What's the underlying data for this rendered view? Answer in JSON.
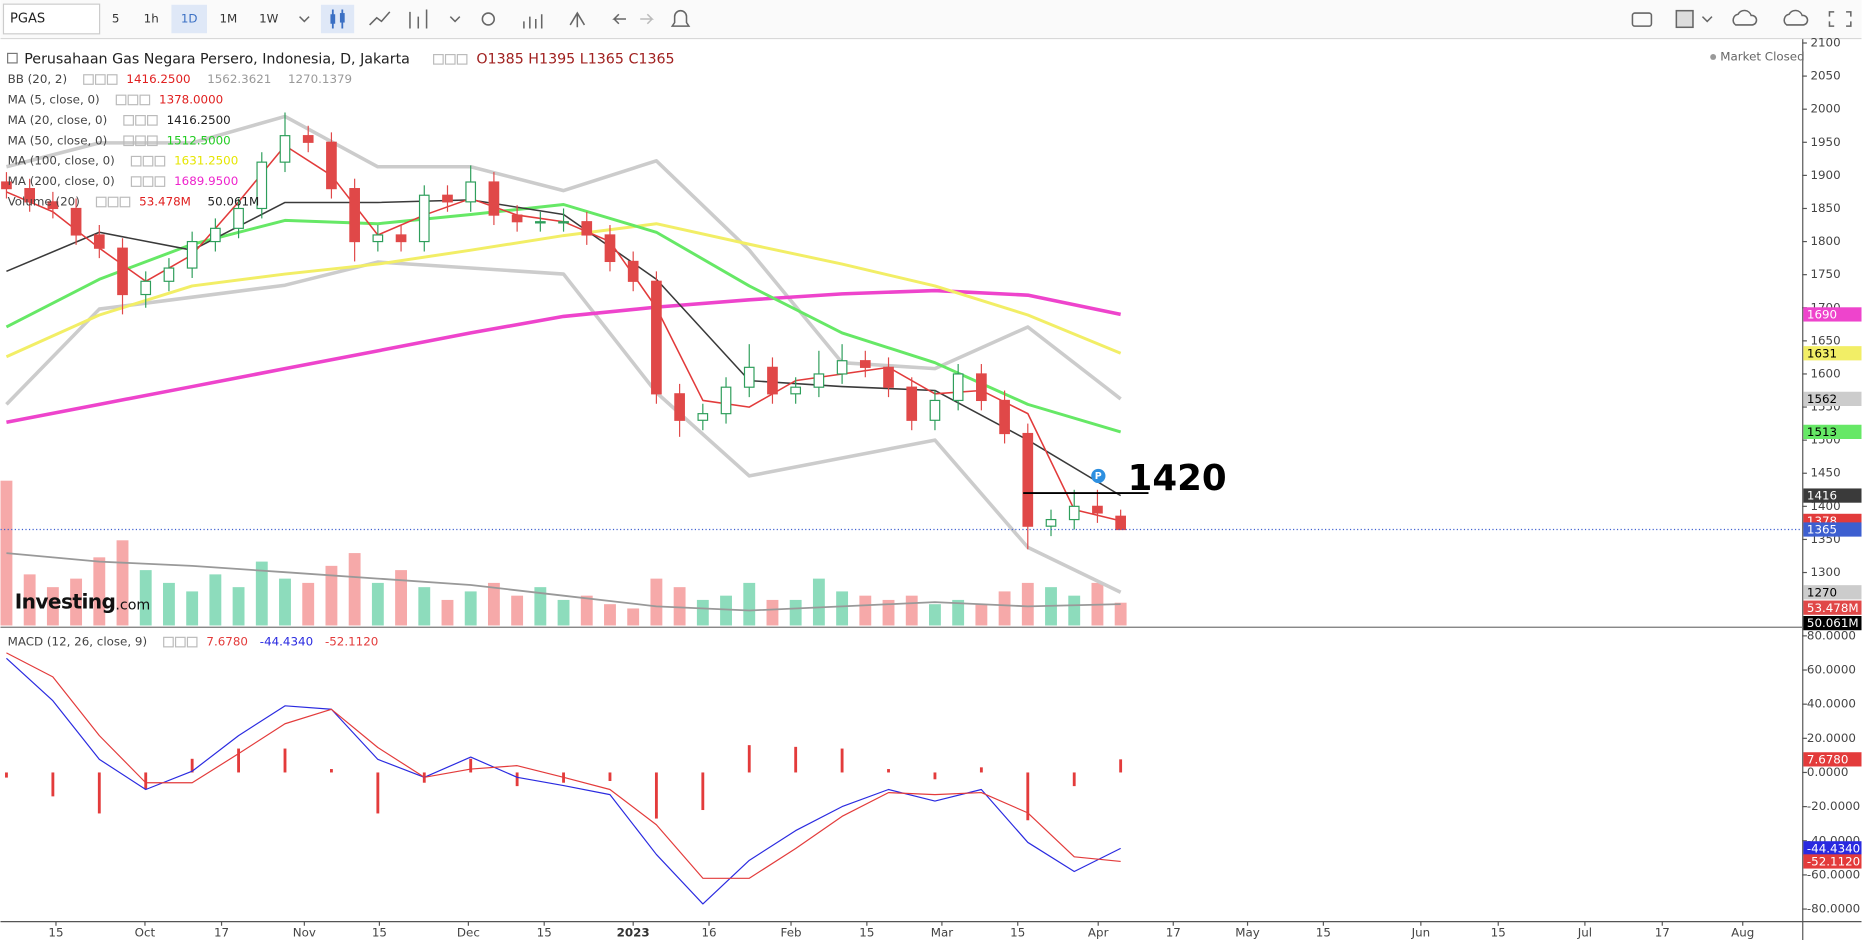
{
  "toolbar": {
    "symbol": "PGAS",
    "intervals": [
      "5",
      "1h",
      "1D",
      "1M",
      "1W"
    ],
    "active": 2
  },
  "status": "Market Closed",
  "watermark": [
    "Investing",
    ".com"
  ],
  "chart_data": [
    {
      "type": "candlestick",
      "title": "Perusahaan Gas Negara Persero, Indonesia, D, Jakarta",
      "ohlc_label": "O1385  H1395  L1365  C1365",
      "up_color": "#2e9e5b",
      "down_color": "#e04848",
      "x": [
        0,
        3,
        6,
        9,
        12,
        15,
        18,
        21,
        24,
        27,
        30,
        33,
        36,
        39,
        42,
        45,
        48,
        51,
        54,
        57,
        60,
        63,
        66,
        69,
        72,
        75,
        78,
        81,
        84,
        87,
        90,
        93,
        96,
        99,
        102,
        105,
        108,
        111,
        114,
        117,
        120,
        123,
        126,
        129,
        132,
        135,
        138,
        141,
        144
      ],
      "open": [
        1890,
        1880,
        1860,
        1850,
        1810,
        1790,
        1720,
        1740,
        1760,
        1800,
        1820,
        1850,
        1920,
        1960,
        1950,
        1880,
        1800,
        1810,
        1800,
        1870,
        1860,
        1890,
        1840,
        1830,
        1830,
        1830,
        1810,
        1770,
        1740,
        1570,
        1530,
        1540,
        1580,
        1610,
        1570,
        1580,
        1600,
        1620,
        1610,
        1580,
        1530,
        1560,
        1600,
        1560,
        1510,
        1370,
        1380,
        1400,
        1385
      ],
      "high": [
        1905,
        1895,
        1875,
        1865,
        1825,
        1805,
        1755,
        1775,
        1815,
        1835,
        1865,
        1935,
        1995,
        1975,
        1965,
        1895,
        1825,
        1825,
        1885,
        1885,
        1915,
        1905,
        1855,
        1845,
        1850,
        1845,
        1825,
        1785,
        1755,
        1585,
        1555,
        1595,
        1645,
        1625,
        1595,
        1635,
        1645,
        1635,
        1625,
        1595,
        1575,
        1615,
        1615,
        1575,
        1525,
        1395,
        1425,
        1425,
        1395
      ],
      "low": [
        1865,
        1845,
        1835,
        1795,
        1775,
        1690,
        1700,
        1725,
        1745,
        1785,
        1805,
        1835,
        1905,
        1935,
        1865,
        1770,
        1785,
        1785,
        1785,
        1845,
        1845,
        1825,
        1815,
        1815,
        1815,
        1795,
        1755,
        1725,
        1555,
        1505,
        1515,
        1525,
        1565,
        1555,
        1555,
        1565,
        1585,
        1595,
        1565,
        1515,
        1515,
        1545,
        1545,
        1495,
        1335,
        1355,
        1365,
        1375,
        1365
      ],
      "close": [
        1880,
        1860,
        1850,
        1810,
        1790,
        1720,
        1740,
        1760,
        1800,
        1820,
        1850,
        1920,
        1960,
        1950,
        1880,
        1800,
        1810,
        1800,
        1870,
        1860,
        1890,
        1840,
        1830,
        1830,
        1830,
        1810,
        1770,
        1740,
        1570,
        1530,
        1540,
        1580,
        1610,
        1570,
        1580,
        1600,
        1620,
        1610,
        1580,
        1530,
        1560,
        1600,
        1560,
        1510,
        1370,
        1380,
        1400,
        1390,
        1365
      ],
      "xlim": [
        -1,
        233
      ],
      "xticks": [
        {
          "value": 6.4,
          "label": "15"
        },
        {
          "value": 17.9,
          "label": "Oct"
        },
        {
          "value": 27.8,
          "label": "17"
        },
        {
          "value": 38.5,
          "label": "Nov"
        },
        {
          "value": 48.2,
          "label": "15"
        },
        {
          "value": 59.7,
          "label": "Dec"
        },
        {
          "value": 69.5,
          "label": "15"
        },
        {
          "value": 81,
          "label": "2023"
        },
        {
          "value": 90.8,
          "label": "16"
        },
        {
          "value": 101.4,
          "label": "Feb"
        },
        {
          "value": 111.2,
          "label": "15"
        },
        {
          "value": 120.9,
          "label": "Mar"
        },
        {
          "value": 130.7,
          "label": "15"
        },
        {
          "value": 141.1,
          "label": "Apr"
        },
        {
          "value": 150.8,
          "label": "17"
        },
        {
          "value": 160.4,
          "label": "May"
        },
        {
          "value": 170.2,
          "label": "15"
        },
        {
          "value": 182.8,
          "label": "Jun"
        },
        {
          "value": 192.8,
          "label": "15"
        },
        {
          "value": 204,
          "label": "Jul"
        },
        {
          "value": 214,
          "label": "17"
        },
        {
          "value": 224.4,
          "label": "Aug"
        }
      ],
      "ylim": [
        1220,
        2104
      ],
      "yticks": [
        1300,
        1350,
        1400,
        1450,
        1500,
        1550,
        1600,
        1650,
        1700,
        1750,
        1800,
        1850,
        1900,
        1950,
        2000,
        2050,
        2100
      ],
      "overlays": [
        {
          "color": "#cccccc",
          "width": 3,
          "x": [
            0,
            12,
            24,
            36,
            48,
            60,
            72,
            84,
            96,
            108,
            120,
            132,
            144
          ],
          "values": [
            1913,
            1949,
            1949,
            1989,
            1913,
            1913,
            1877,
            1922,
            1787,
            1617,
            1608,
            1671,
            1562.3621
          ],
          "value_label": "1562"
        },
        {
          "color": "#cccccc",
          "width": 3,
          "x": [
            0,
            12,
            24,
            36,
            48,
            60,
            72,
            84,
            96,
            108,
            120,
            132,
            144
          ],
          "values": [
            1554,
            1698,
            1716,
            1734,
            1769,
            1760,
            1751,
            1572,
            1446,
            1473,
            1500,
            1338,
            1270.1379
          ],
          "value_label": "1270"
        },
        {
          "color": "#ee44cc",
          "width": 3,
          "x": [
            0,
            12,
            24,
            36,
            48,
            60,
            72,
            84,
            96,
            108,
            120,
            132,
            144
          ],
          "values": [
            1527,
            1554,
            1581,
            1608,
            1635,
            1662,
            1687,
            1701,
            1712,
            1721,
            1726,
            1719,
            1689.95
          ],
          "value_label": "1690"
        },
        {
          "color": "#f2ee66",
          "width": 2.5,
          "x": [
            0,
            12,
            24,
            36,
            48,
            60,
            72,
            84,
            96,
            108,
            120,
            132,
            144
          ],
          "values": [
            1626,
            1689,
            1733,
            1751,
            1766,
            1787,
            1809,
            1827,
            1796,
            1766,
            1733,
            1689,
            1631.25
          ],
          "value_label": "1631"
        },
        {
          "color": "#66e866",
          "width": 2.5,
          "x": [
            0,
            12,
            24,
            36,
            48,
            60,
            72,
            84,
            96,
            108,
            120,
            132,
            144
          ],
          "values": [
            1671,
            1743,
            1796,
            1832,
            1827,
            1841,
            1856,
            1814,
            1733,
            1662,
            1617,
            1554,
            1512.5
          ],
          "value_label": "1513"
        },
        {
          "color": "#3a3a3a",
          "width": 1.3,
          "x": [
            0,
            12,
            24,
            36,
            48,
            60,
            72,
            84,
            96,
            108,
            120,
            132,
            144
          ],
          "values": [
            1755,
            1814,
            1787,
            1859,
            1859,
            1863,
            1841,
            1743,
            1590,
            1581,
            1575,
            1500,
            1416.25
          ],
          "value_label": "1416"
        },
        {
          "color": "#e23b3b",
          "width": 1.3,
          "x": [
            0,
            6,
            12,
            18,
            24,
            30,
            36,
            42,
            48,
            54,
            60,
            66,
            72,
            78,
            84,
            90,
            96,
            102,
            108,
            114,
            120,
            126,
            132,
            138,
            144
          ],
          "values": [
            1875,
            1845,
            1790,
            1740,
            1780,
            1860,
            1945,
            1900,
            1810,
            1840,
            1865,
            1840,
            1830,
            1800,
            1700,
            1560,
            1550,
            1590,
            1600,
            1610,
            1570,
            1575,
            1540,
            1395,
            1378
          ],
          "value_label": "1378"
        }
      ],
      "legend": [
        {
          "name": "BB (20, 2)",
          "values": [
            "1416.2500",
            "1562.3621",
            "1270.1379"
          ],
          "colors": [
            "#e02020",
            "#999999",
            "#999999"
          ]
        },
        {
          "name": "MA (5, close, 0)",
          "values": [
            "1378.0000"
          ],
          "colors": [
            "#e02020"
          ]
        },
        {
          "name": "MA (20, close, 0)",
          "values": [
            "1416.2500"
          ],
          "colors": [
            "#222222"
          ]
        },
        {
          "name": "MA (50, close, 0)",
          "values": [
            "1512.5000"
          ],
          "colors": [
            "#22cc22"
          ]
        },
        {
          "name": "MA (100, close, 0)",
          "values": [
            "1631.2500"
          ],
          "colors": [
            "#e6e600"
          ]
        },
        {
          "name": "MA (200, close, 0)",
          "values": [
            "1689.9500"
          ],
          "colors": [
            "#ee22cc"
          ]
        },
        {
          "name": "Volume (20)",
          "values": [
            "53.478M",
            "50.061M"
          ],
          "colors": [
            "#e02020",
            "#222222"
          ]
        }
      ],
      "volume": {
        "ylim": [
          0,
          340
        ],
        "up_color": "#8ddcbc",
        "down_color": "#f6a9a9",
        "values": [
          340,
          120,
          90,
          110,
          160,
          200,
          130,
          100,
          80,
          120,
          90,
          150,
          110,
          100,
          140,
          170,
          100,
          130,
          90,
          60,
          80,
          100,
          70,
          90,
          60,
          70,
          50,
          40,
          110,
          90,
          60,
          70,
          100,
          60,
          60,
          110,
          80,
          70,
          60,
          70,
          50,
          60,
          50,
          80,
          100,
          90,
          70,
          100,
          53.478
        ],
        "value_label": "53.478M",
        "ma": {
          "color": "#999999",
          "x": [
            0,
            12,
            24,
            36,
            48,
            60,
            72,
            84,
            96,
            108,
            120,
            132,
            144
          ],
          "values": [
            170,
            150,
            140,
            125,
            110,
            95,
            70,
            45,
            35,
            45,
            55,
            45,
            50.061
          ],
          "value_label": "50.061M"
        }
      },
      "last_price": {
        "value": 1365,
        "value_label": "1365",
        "color": "#3d5fd0"
      },
      "annotation": {
        "text": "1420",
        "value": 1420,
        "x": [
          131.4,
          147.6
        ]
      }
    },
    {
      "type": "macd",
      "title": "MACD (12, 26, close, 9)",
      "x": [
        0,
        6,
        12,
        18,
        24,
        30,
        36,
        42,
        48,
        54,
        60,
        66,
        72,
        78,
        84,
        90,
        96,
        102,
        108,
        114,
        120,
        126,
        132,
        138,
        144
      ],
      "histogram": {
        "color": "#e33b3b",
        "values": [
          -3,
          -14,
          -24,
          -10,
          8,
          14,
          14,
          2,
          -24,
          -6,
          8,
          -8,
          -6,
          -5,
          -27,
          -22,
          16,
          15,
          14,
          2,
          -4,
          3,
          -28,
          -8,
          7.678
        ],
        "value_label": "7.6780"
      },
      "series": [
        {
          "color": "#2a2ae0",
          "values": [
            66.8,
            42,
            7.7,
            -10,
            0.7,
            21.6,
            39,
            37,
            7.7,
            -2.8,
            9,
            -2.8,
            -7.7,
            -13,
            -48,
            -77,
            -51.5,
            -34,
            -20,
            -10,
            -16.7,
            -10,
            -41,
            -58,
            -44.434
          ],
          "value_label": "-44.4340"
        },
        {
          "color": "#e33b3b",
          "values": [
            70,
            56,
            21.6,
            -6,
            -6,
            11,
            28.5,
            37,
            14.6,
            -2.8,
            2,
            4,
            -2.8,
            -10,
            -30.6,
            -62,
            -62,
            -44.5,
            -25.7,
            -11.8,
            -13,
            -11.8,
            -23.7,
            -49.4,
            -52.112
          ],
          "value_label": "-52.1120"
        }
      ],
      "ylim": [
        -87,
        84
      ],
      "yticks": [
        {
          "value": 80,
          "label": "80.0000"
        },
        {
          "value": 60,
          "label": "60.0000"
        },
        {
          "value": 40,
          "label": "40.0000"
        },
        {
          "value": 20,
          "label": "20.0000"
        },
        {
          "value": 0,
          "label": "0.0000"
        },
        {
          "value": -20,
          "label": "-20.0000"
        },
        {
          "value": -40,
          "label": "-40.0000"
        },
        {
          "value": -60,
          "label": "-60.0000"
        },
        {
          "value": -80,
          "label": "-80.0000"
        }
      ]
    }
  ]
}
